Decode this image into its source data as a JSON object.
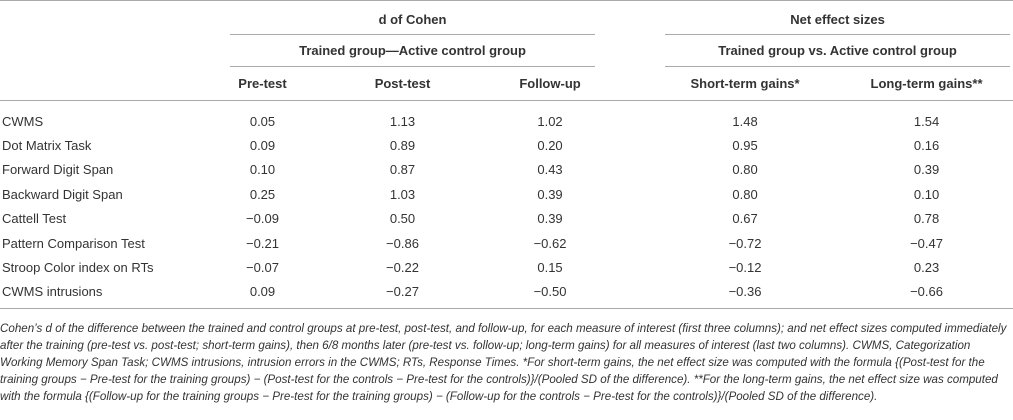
{
  "table": {
    "header": {
      "groups": [
        "d of Cohen",
        "Net effect sizes"
      ],
      "subgroups": [
        "Trained group—Active control group",
        "Trained group vs. Active control group"
      ],
      "columns": [
        "Pre-test",
        "Post-test",
        "Follow-up",
        "Short-term gains*",
        "Long-term gains**"
      ]
    },
    "rows": [
      [
        "CWMS",
        "0.05",
        "1.13",
        "1.02",
        "1.48",
        "1.54"
      ],
      [
        "Dot Matrix Task",
        "0.09",
        "0.89",
        "0.20",
        "0.95",
        "0.16"
      ],
      [
        "Forward Digit Span",
        "0.10",
        "0.87",
        "0.43",
        "0.80",
        "0.39"
      ],
      [
        "Backward Digit Span",
        "0.25",
        "1.03",
        "0.39",
        "0.80",
        "0.10"
      ],
      [
        "Cattell Test",
        "−0.09",
        "0.50",
        "0.39",
        "0.67",
        "0.78"
      ],
      [
        "Pattern Comparison Test",
        "−0.21",
        "−0.86",
        "−0.62",
        "−0.72",
        "−0.47"
      ],
      [
        "Stroop Color index on RTs",
        "−0.07",
        "−0.22",
        "0.15",
        "−0.12",
        "0.23"
      ],
      [
        "CWMS intrusions",
        "0.09",
        "−0.27",
        "−0.50",
        "−0.36",
        "−0.66"
      ]
    ]
  },
  "note": "Cohen’s d of the difference between the trained and control groups at pre-test, post-test, and follow-up, for each measure of interest (first three columns); and net effect sizes computed immediately after the training (pre-test vs. post-test; short-term gains), then 6/8 months later (pre-test vs. follow-up; long-term gains) for all measures of interest (last two columns). CWMS, Categorization Working Memory Span Task; CWMS intrusions, intrusion errors in the CWMS; RTs, Response Times. *For short-term gains, the net effect size was computed with the formula {(Post-test for the training groups − Pre-test for the training groups) − (Post-test for the controls − Pre-test for the controls)}/(Pooled SD of the difference). **For the long-term gains, the net effect size was computed with the formula {(Follow-up for the training groups − Pre-test for the training groups) − (Follow-up for the controls − Pre-test for the controls)}/(Pooled SD of the difference)."
}
